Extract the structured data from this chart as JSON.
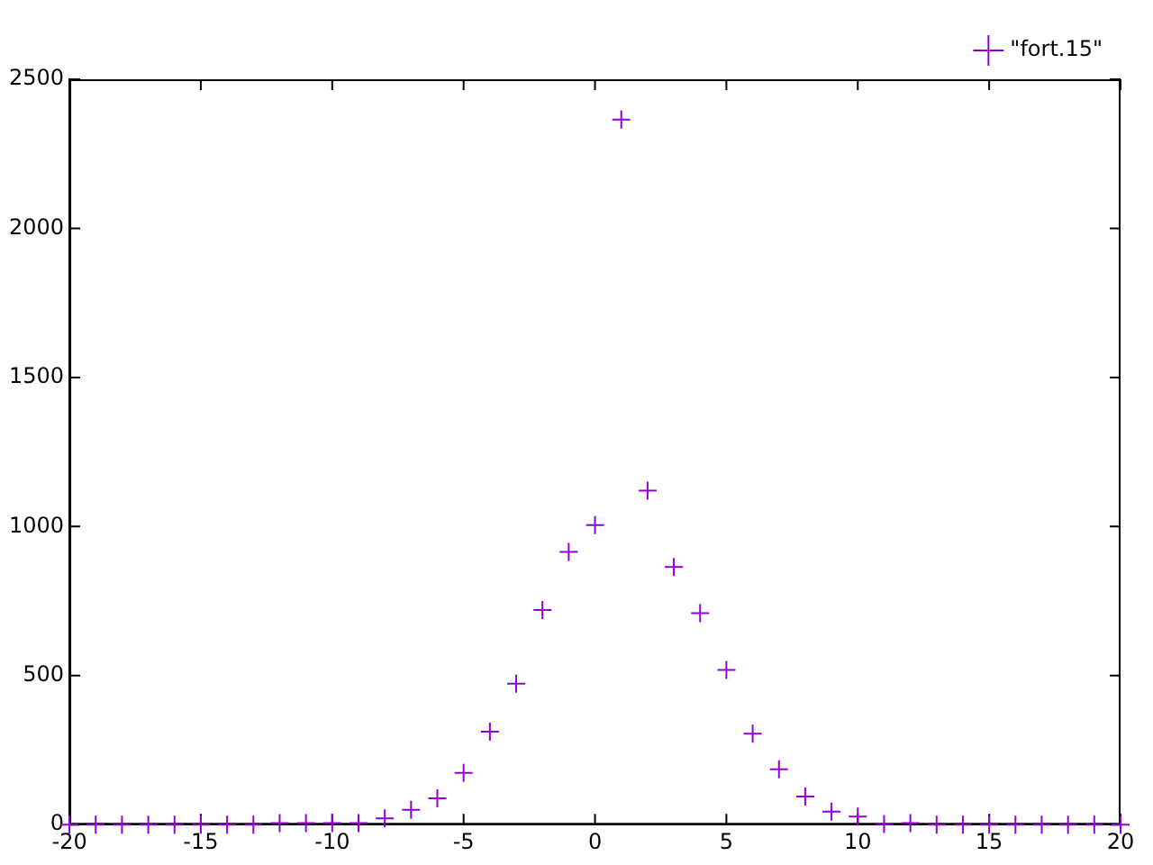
{
  "chart_data": {
    "type": "scatter",
    "x": [
      -20,
      -19,
      -18,
      -17,
      -16,
      -15,
      -14,
      -13,
      -12,
      -11,
      -10,
      -9,
      -8,
      -7,
      -6,
      -5,
      -4,
      -3,
      -2,
      -1,
      0,
      1,
      2,
      3,
      4,
      5,
      6,
      7,
      8,
      9,
      10,
      11,
      12,
      13,
      14,
      15,
      16,
      17,
      18,
      19,
      20
    ],
    "series": [
      {
        "name": "\"fort.15\"",
        "color": "#9400d3",
        "values": [
          0,
          0,
          0,
          0,
          0,
          0,
          0,
          0,
          5,
          5,
          5,
          5,
          21,
          50,
          88,
          174,
          312,
          473,
          720,
          915,
          1005,
          2365,
          1120,
          864,
          709,
          519,
          305,
          186,
          94,
          44,
          27,
          2,
          5,
          0,
          0,
          0,
          0,
          0,
          0,
          0,
          0
        ]
      }
    ],
    "xlim": [
      -20,
      20
    ],
    "xticks": [
      -20,
      -15,
      -10,
      -5,
      0,
      5,
      10,
      15,
      20
    ],
    "ylim": [
      0,
      2500
    ],
    "yticks": [
      0,
      500,
      1000,
      1500,
      2000,
      2500
    ],
    "grid": false,
    "legend": "top right",
    "marker": "cross"
  }
}
